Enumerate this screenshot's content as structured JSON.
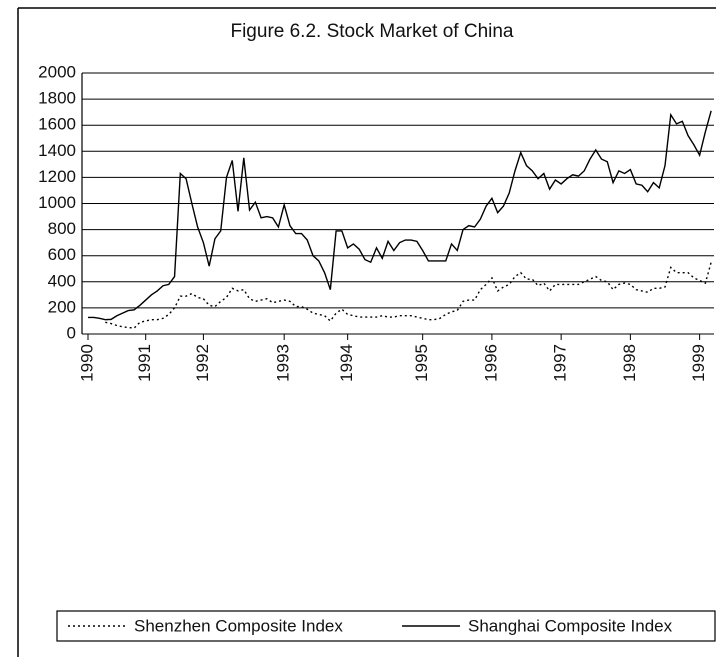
{
  "chart_data": {
    "type": "line",
    "title": "Figure 6.2.  Stock Market of China",
    "categories": [
      "1990",
      null,
      null,
      null,
      null,
      null,
      null,
      null,
      null,
      null,
      "1991",
      null,
      null,
      null,
      null,
      null,
      null,
      null,
      null,
      null,
      "1992",
      null,
      null,
      null,
      null,
      null,
      null,
      null,
      null,
      null,
      null,
      null,
      null,
      null,
      "1993",
      null,
      null,
      null,
      null,
      null,
      null,
      null,
      null,
      null,
      null,
      "1994",
      null,
      null,
      null,
      null,
      null,
      null,
      null,
      null,
      null,
      null,
      null,
      null,
      "1995",
      null,
      null,
      null,
      null,
      null,
      null,
      null,
      null,
      null,
      null,
      null,
      "1996",
      null,
      null,
      null,
      null,
      null,
      null,
      null,
      null,
      null,
      null,
      null,
      "1997",
      null,
      null,
      null,
      null,
      null,
      null,
      null,
      null,
      null,
      null,
      null,
      "1998",
      null,
      null,
      null,
      null,
      null,
      null,
      null,
      null,
      null,
      null,
      null,
      "1999",
      null,
      null
    ],
    "series": [
      {
        "name": "Shenzhen Composite Index",
        "color": "#000000",
        "dash": "dotted",
        "values": [
          null,
          null,
          null,
          90,
          80,
          65,
          55,
          50,
          45,
          90,
          100,
          110,
          110,
          120,
          150,
          200,
          290,
          290,
          310,
          280,
          270,
          220,
          210,
          250,
          280,
          350,
          330,
          340,
          270,
          250,
          260,
          270,
          240,
          250,
          260,
          250,
          210,
          210,
          190,
          160,
          150,
          140,
          100,
          160,
          190,
          150,
          140,
          130,
          130,
          130,
          130,
          140,
          130,
          130,
          140,
          140,
          140,
          130,
          120,
          110,
          110,
          120,
          150,
          170,
          180,
          250,
          260,
          260,
          340,
          380,
          430,
          330,
          360,
          380,
          440,
          470,
          420,
          420,
          370,
          390,
          330,
          380,
          380,
          380,
          380,
          380,
          400,
          420,
          440,
          410,
          400,
          340,
          380,
          390,
          380,
          340,
          330,
          320,
          350,
          350,
          360,
          510,
          470,
          470,
          470,
          430,
          410,
          390,
          550
        ]
      },
      {
        "name": "Shanghai Composite Index",
        "color": "#000000",
        "dash": "solid",
        "values": [
          127,
          127,
          120,
          110,
          112,
          140,
          160,
          180,
          185,
          220,
          260,
          300,
          330,
          370,
          380,
          440,
          1230,
          1190,
          1000,
          820,
          700,
          520,
          730,
          790,
          1200,
          1330,
          940,
          1350,
          950,
          1010,
          890,
          900,
          890,
          820,
          990,
          830,
          770,
          770,
          720,
          600,
          560,
          470,
          340,
          790,
          790,
          660,
          690,
          650,
          570,
          550,
          660,
          580,
          710,
          640,
          700,
          720,
          720,
          710,
          640,
          560,
          560,
          560,
          560,
          690,
          640,
          800,
          830,
          820,
          880,
          980,
          1040,
          930,
          980,
          1080,
          1250,
          1390,
          1290,
          1250,
          1190,
          1230,
          1110,
          1180,
          1150,
          1190,
          1220,
          1210,
          1250,
          1340,
          1410,
          1340,
          1320,
          1160,
          1250,
          1230,
          1260,
          1150,
          1140,
          1090,
          1160,
          1120,
          1290,
          1680,
          1610,
          1630,
          1520,
          1450,
          1370,
          1550,
          1710
        ]
      }
    ],
    "ylim": [
      0,
      2000
    ],
    "yticks": [
      0,
      200,
      400,
      600,
      800,
      1000,
      1200,
      1400,
      1600,
      1800,
      2000
    ],
    "grid": true,
    "legend": "bottom"
  }
}
